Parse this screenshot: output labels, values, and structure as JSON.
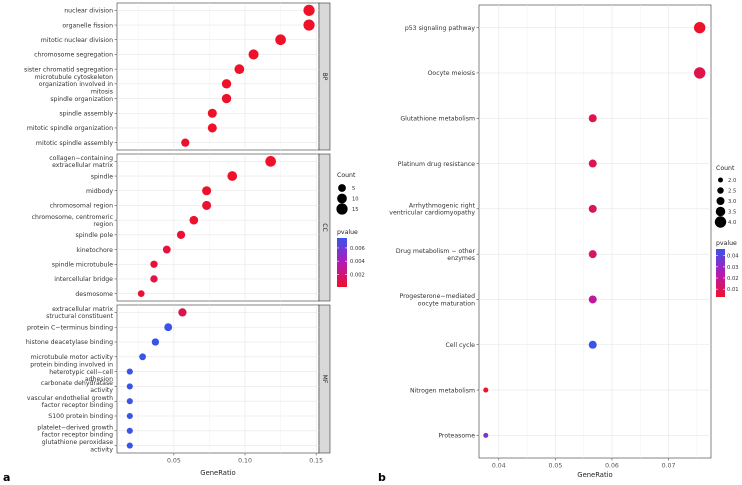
{
  "colors": {
    "low_pvalue": "#ee1129",
    "mid_pvalue": "#9b1fc8",
    "high_pvalue": "#3a53e8",
    "panel_bg": "#ffffff",
    "grid": "#ebebeb",
    "strip_bg": "#d9d9d9"
  },
  "chart_data": [
    {
      "type": "scatter",
      "panel_label": "a",
      "xlabel": "GeneRatio",
      "xlim": [
        0.01,
        0.152
      ],
      "xticks": [
        0.05,
        0.1,
        0.15
      ],
      "xtick_labels": [
        "0.05",
        "0.10",
        "0.15"
      ],
      "facets": [
        {
          "name": "BP",
          "points": [
            {
              "label": "nuclear division",
              "x": 0.145,
              "count": 15,
              "pvalue": 0.0001
            },
            {
              "label": "organelle fission",
              "x": 0.145,
              "count": 15,
              "pvalue": 0.0001
            },
            {
              "label": "mitotic nuclear division",
              "x": 0.125,
              "count": 13,
              "pvalue": 0.0001
            },
            {
              "label": "chromosome segregation",
              "x": 0.106,
              "count": 11,
              "pvalue": 0.0001
            },
            {
              "label": "sister chromatid segregation",
              "x": 0.096,
              "count": 10,
              "pvalue": 0.0001
            },
            {
              "label": "microtubule cytoskeleton organization involved in mitosis",
              "x": 0.087,
              "count": 9,
              "pvalue": 0.0001
            },
            {
              "label": "spindle organization",
              "x": 0.087,
              "count": 9,
              "pvalue": 0.0001
            },
            {
              "label": "spindle assembly",
              "x": 0.077,
              "count": 8,
              "pvalue": 0.0001
            },
            {
              "label": "mitotic spindle organization",
              "x": 0.077,
              "count": 8,
              "pvalue": 0.0001
            },
            {
              "label": "mitotic spindle assembly",
              "x": 0.058,
              "count": 6,
              "pvalue": 0.0002
            }
          ]
        },
        {
          "name": "CC",
          "points": [
            {
              "label": "collagen−containing extracellular matrix",
              "x": 0.118,
              "count": 13,
              "pvalue": 0.0001
            },
            {
              "label": "spindle",
              "x": 0.091,
              "count": 10,
              "pvalue": 0.0001
            },
            {
              "label": "midbody",
              "x": 0.073,
              "count": 8,
              "pvalue": 0.0001
            },
            {
              "label": "chromosomal region",
              "x": 0.073,
              "count": 8,
              "pvalue": 0.0003
            },
            {
              "label": "chromosome, centromeric region",
              "x": 0.064,
              "count": 7,
              "pvalue": 0.0002
            },
            {
              "label": "spindle pole",
              "x": 0.055,
              "count": 6,
              "pvalue": 0.0004
            },
            {
              "label": "kinetochore",
              "x": 0.045,
              "count": 5,
              "pvalue": 0.0006
            },
            {
              "label": "spindle microtubule",
              "x": 0.036,
              "count": 4,
              "pvalue": 0.0004
            },
            {
              "label": "intercellular bridge",
              "x": 0.036,
              "count": 4,
              "pvalue": 0.0008
            },
            {
              "label": "desmosome",
              "x": 0.027,
              "count": 3,
              "pvalue": 0.0005
            }
          ]
        },
        {
          "name": "MF",
          "points": [
            {
              "label": "extracellular matrix structural constituent",
              "x": 0.056,
              "count": 6,
              "pvalue": 0.001
            },
            {
              "label": "protein C−terminus binding",
              "x": 0.046,
              "count": 5,
              "pvalue": 0.018
            },
            {
              "label": "histone deacetylase binding",
              "x": 0.037,
              "count": 4,
              "pvalue": 0.027
            },
            {
              "label": "microtubule motor activity",
              "x": 0.028,
              "count": 3,
              "pvalue": 0.036
            },
            {
              "label": "protein binding involved in heterotypic cell−cell adhesion",
              "x": 0.019,
              "count": 2,
              "pvalue": 0.012
            },
            {
              "label": "carbonate dehydratase activity",
              "x": 0.019,
              "count": 2,
              "pvalue": 0.012
            },
            {
              "label": "vascular endothelial growth factor receptor binding",
              "x": 0.019,
              "count": 2,
              "pvalue": 0.012
            },
            {
              "label": "S100 protein binding",
              "x": 0.019,
              "count": 2,
              "pvalue": 0.014
            },
            {
              "label": "platelet−derived growth factor receptor binding",
              "x": 0.019,
              "count": 2,
              "pvalue": 0.016
            },
            {
              "label": "glutathione peroxidase activity",
              "x": 0.019,
              "count": 2,
              "pvalue": 0.03
            }
          ]
        }
      ],
      "legend_count": {
        "title": "Count",
        "values": [
          5,
          10,
          15
        ]
      },
      "legend_pvalue": {
        "title": "pvalue",
        "ticks": [
          0.006,
          0.004,
          0.002
        ],
        "tick_labels": [
          "0.006",
          "0.004",
          "0.002"
        ],
        "range": [
          0.0001,
          0.0075
        ]
      }
    },
    {
      "type": "scatter",
      "panel_label": "b",
      "xlabel": "GeneRatio",
      "xlim": [
        0.0365,
        0.0775
      ],
      "xticks": [
        0.04,
        0.05,
        0.06,
        0.07
      ],
      "xtick_labels": [
        "0.04",
        "0.05",
        "0.06",
        "0.07"
      ],
      "points": [
        {
          "label": "p53 signaling pathway",
          "x": 0.0755,
          "count": 4,
          "pvalue": 0.003
        },
        {
          "label": "Oocyte meiosis",
          "x": 0.0755,
          "count": 4,
          "pvalue": 0.008
        },
        {
          "label": "Glutathione metabolism",
          "x": 0.0566,
          "count": 3,
          "pvalue": 0.008
        },
        {
          "label": "Platinum drug resistance",
          "x": 0.0566,
          "count": 3,
          "pvalue": 0.009
        },
        {
          "label": "Arrhythmogenic right ventricular cardiomyopathy",
          "x": 0.0566,
          "count": 3,
          "pvalue": 0.011
        },
        {
          "label": "Drug metabolism − other enzymes",
          "x": 0.0566,
          "count": 3,
          "pvalue": 0.012
        },
        {
          "label": "Progesterone−mediated oocyte maturation",
          "x": 0.0566,
          "count": 3,
          "pvalue": 0.02
        },
        {
          "label": "Cell cycle",
          "x": 0.0566,
          "count": 3,
          "pvalue": 0.046
        },
        {
          "label": "Nitrogen metabolism",
          "x": 0.0377,
          "count": 2,
          "pvalue": 0.003
        },
        {
          "label": "Proteasome",
          "x": 0.0377,
          "count": 2,
          "pvalue": 0.034
        }
      ],
      "legend_count": {
        "title": "Count",
        "values": [
          2.0,
          2.5,
          3.0,
          3.5,
          4.0
        ],
        "value_labels": [
          "2.0",
          "2.5",
          "3.0",
          "3.5",
          "4.0"
        ]
      },
      "legend_pvalue": {
        "title": "pvalue",
        "ticks": [
          0.04,
          0.03,
          0.02,
          0.01
        ],
        "tick_labels": [
          "0.04",
          "0.03",
          "0.02",
          "0.01"
        ],
        "range": [
          0.003,
          0.046
        ]
      }
    }
  ]
}
